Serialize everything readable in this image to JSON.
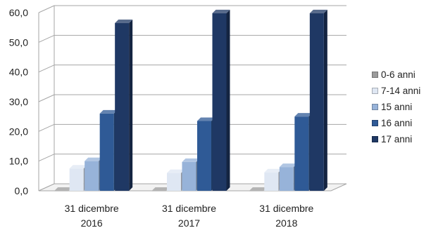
{
  "chart_data": {
    "type": "bar",
    "categories": [
      [
        "31 dicembre",
        "2016"
      ],
      [
        "31 dicembre",
        "2017"
      ],
      [
        "31 dicembre",
        "2018"
      ]
    ],
    "series": [
      {
        "name": "0-6 anni",
        "values": [
          0.0,
          0.0,
          0.0
        ],
        "color": "#9b9b9b"
      },
      {
        "name": "7-14 anni",
        "values": [
          7.5,
          6.0,
          6.2
        ],
        "color": "#dfe7f3"
      },
      {
        "name": "15 anni",
        "values": [
          10.0,
          9.7,
          8.0
        ],
        "color": "#97b3d9"
      },
      {
        "name": "16 anni",
        "values": [
          26.0,
          23.5,
          25.0
        ],
        "color": "#2f5a96"
      },
      {
        "name": "17 anni",
        "values": [
          56.5,
          59.8,
          59.8
        ],
        "color": "#1f3864"
      }
    ],
    "yticks": [
      "0,0",
      "10,0",
      "20,0",
      "30,0",
      "40,0",
      "50,0",
      "60,0"
    ],
    "ylim": [
      0,
      60
    ],
    "grid": true,
    "legend_position": "right",
    "three_d": true
  }
}
